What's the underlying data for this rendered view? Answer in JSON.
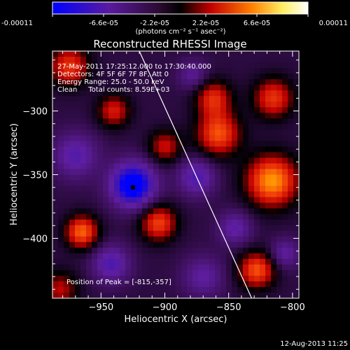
{
  "window": {
    "background": "#000000",
    "foreground": "#ffffff"
  },
  "chart_data": {
    "type": "heatmap",
    "title": "Reconstructed RHESSI Image",
    "colorbar": {
      "ticks": [
        "-0.00011",
        "-6.6e-05",
        "-2.2e-05",
        "2.2e-05",
        "6.6e-05",
        "0.00011"
      ],
      "tick_values": [
        -0.00011,
        -6.6e-05,
        -2.2e-05,
        2.2e-05,
        6.6e-05,
        0.00011
      ],
      "range": [
        -0.00011,
        0.00011
      ],
      "units_label": "(photons cm⁻² s⁻¹ asec⁻²)",
      "colormap": [
        "#0000ff",
        "#6a1b9a",
        "#000000",
        "#cc0000",
        "#ff8000",
        "#ffff80",
        "#ffffff"
      ]
    },
    "xlabel": "Heliocentric X (arcsec)",
    "ylabel": "Heliocentric Y (arcsec)",
    "xlim": [
      -988,
      -795
    ],
    "ylim": [
      -447,
      -253
    ],
    "xticks": [
      -950,
      -900,
      -850,
      -800
    ],
    "yticks": [
      -300,
      -350,
      -400
    ],
    "annotations": {
      "line1": "27-May-2011 17:25:12.000 to 17:30:40.000",
      "line2": "Detectors: 4F 5F 6F 7F 8F, Att 0",
      "line3": "Energy Range: 25.0 - 50.0 keV",
      "line4": "Clean     Total counts: 8.59E+03",
      "peak_label": "Position of Peak = [-815,-357]"
    },
    "peak_position": [
      -815,
      -357
    ],
    "marker_position": [
      -925,
      -360
    ],
    "limb_line": {
      "x": [
        -920,
        -832
      ],
      "y": [
        -253,
        -447
      ]
    },
    "sources": [
      {
        "x": -816,
        "y": -355,
        "amp": 9.5e-05,
        "sigma": 14
      },
      {
        "x": -858,
        "y": -318,
        "amp": 7.5e-05,
        "sigma": 12
      },
      {
        "x": -862,
        "y": -290,
        "amp": 6e-05,
        "sigma": 10
      },
      {
        "x": -815,
        "y": -290,
        "amp": 6.5e-05,
        "sigma": 11
      },
      {
        "x": -828,
        "y": -425,
        "amp": 7.5e-05,
        "sigma": 10
      },
      {
        "x": -975,
        "y": -265,
        "amp": 6.5e-05,
        "sigma": 11
      },
      {
        "x": -940,
        "y": -300,
        "amp": 5.5e-05,
        "sigma": 9
      },
      {
        "x": -965,
        "y": -395,
        "amp": 8e-05,
        "sigma": 9
      },
      {
        "x": -905,
        "y": -388,
        "amp": 7e-05,
        "sigma": 10
      },
      {
        "x": -900,
        "y": -328,
        "amp": 5e-05,
        "sigma": 9
      },
      {
        "x": -982,
        "y": -440,
        "amp": 4.5e-05,
        "sigma": 10
      },
      {
        "x": -925,
        "y": -358,
        "amp": -0.00011,
        "sigma": 12
      },
      {
        "x": -942,
        "y": -420,
        "amp": -5.5e-05,
        "sigma": 10
      },
      {
        "x": -970,
        "y": -335,
        "amp": -5e-05,
        "sigma": 12
      },
      {
        "x": -875,
        "y": -352,
        "amp": -5.5e-05,
        "sigma": 10
      },
      {
        "x": -845,
        "y": -392,
        "amp": -4.5e-05,
        "sigma": 9
      },
      {
        "x": -870,
        "y": -430,
        "amp": -4e-05,
        "sigma": 11
      },
      {
        "x": -806,
        "y": -412,
        "amp": -4e-05,
        "sigma": 8
      },
      {
        "x": -878,
        "y": -272,
        "amp": -3.5e-05,
        "sigma": 8
      }
    ]
  },
  "footer": {
    "timestamp": "12-Aug-2013 11:25"
  }
}
